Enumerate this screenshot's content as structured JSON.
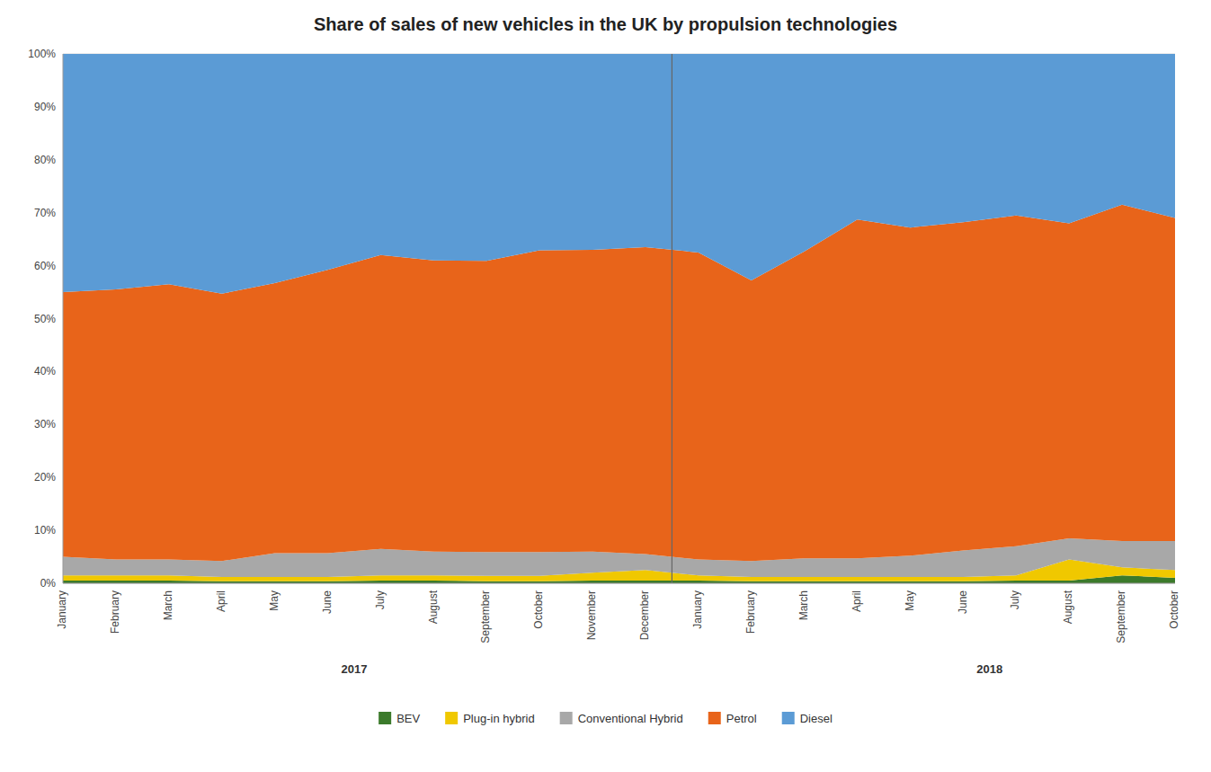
{
  "chart_data": {
    "type": "area",
    "stacked": true,
    "title": "Share of sales of new vehicles in the UK by propulsion technologies",
    "categories": [
      "January",
      "February",
      "March",
      "April",
      "May",
      "June",
      "July",
      "August",
      "September",
      "October",
      "November",
      "December",
      "January",
      "February",
      "March",
      "April",
      "May",
      "June",
      "July",
      "August",
      "September",
      "October"
    ],
    "series": [
      {
        "name": "BEV",
        "color": "#3B7A2B",
        "values": [
          0.5,
          0.5,
          0.5,
          0.4,
          0.4,
          0.4,
          0.5,
          0.5,
          0.4,
          0.4,
          0.5,
          0.5,
          0.5,
          0.4,
          0.4,
          0.4,
          0.4,
          0.4,
          0.5,
          0.5,
          1.5,
          1.0
        ]
      },
      {
        "name": "Plug-in hybrid",
        "color": "#F0C800",
        "values": [
          1.0,
          1.0,
          1.0,
          0.8,
          0.8,
          0.8,
          1.0,
          1.0,
          1.0,
          1.0,
          1.5,
          2.0,
          1.0,
          0.8,
          0.8,
          0.8,
          0.8,
          0.8,
          1.0,
          4.0,
          1.5,
          1.5
        ]
      },
      {
        "name": "Conventional Hybrid",
        "color": "#A8A8A8",
        "values": [
          3.5,
          3.0,
          3.0,
          3.0,
          4.5,
          4.5,
          5.0,
          4.5,
          4.5,
          4.5,
          4.0,
          3.0,
          3.0,
          3.0,
          3.5,
          3.5,
          4.0,
          5.0,
          5.5,
          4.0,
          5.0,
          5.5
        ]
      },
      {
        "name": "Petrol",
        "color": "#E8641A",
        "values": [
          50.0,
          51.0,
          52.0,
          50.5,
          51.0,
          53.5,
          55.5,
          55.0,
          55.0,
          57.0,
          57.0,
          58.0,
          58.0,
          53.0,
          58.0,
          64.0,
          62.0,
          62.0,
          62.5,
          59.5,
          63.5,
          61.0
        ]
      },
      {
        "name": "Diesel",
        "color": "#5B9BD5",
        "values": [
          45.0,
          44.5,
          43.5,
          45.3,
          43.3,
          40.8,
          38.0,
          39.0,
          39.1,
          37.1,
          37.0,
          36.5,
          37.5,
          42.8,
          37.3,
          31.3,
          32.8,
          31.8,
          30.5,
          32.0,
          28.5,
          31.0
        ]
      }
    ],
    "annotations": [
      {
        "text": "2017",
        "x": 5.5
      },
      {
        "text": "2018",
        "x": 17.5
      }
    ],
    "x_dividers": [
      11.5
    ],
    "ylim": [
      0,
      100
    ],
    "yticks": [
      {
        "value": 0,
        "label": "0%"
      },
      {
        "value": 10,
        "label": "10%"
      },
      {
        "value": 20,
        "label": "20%"
      },
      {
        "value": 30,
        "label": "30%"
      },
      {
        "value": 40,
        "label": "40%"
      },
      {
        "value": 50,
        "label": "50%"
      },
      {
        "value": 60,
        "label": "60%"
      },
      {
        "value": 70,
        "label": "70%"
      },
      {
        "value": 80,
        "label": "80%"
      },
      {
        "value": 90,
        "label": "90%"
      },
      {
        "value": 100,
        "label": "100%"
      }
    ],
    "grid": true,
    "legend": "bottom"
  }
}
